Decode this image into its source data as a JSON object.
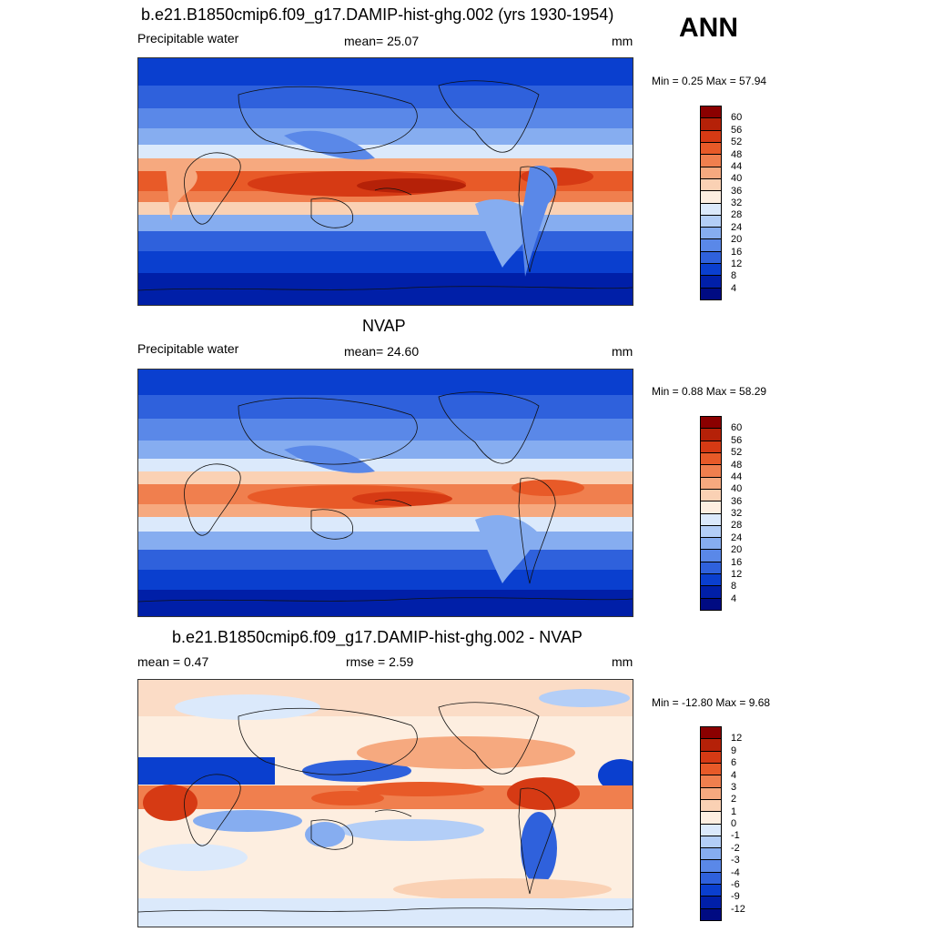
{
  "season": "ANN",
  "panels": [
    {
      "title": "b.e21.B1850cmip6.f09_g17.DAMIP-hist-ghg.002 (yrs 1930-1954)",
      "left_label": "Precipitable water",
      "center_label": "mean=  25.07",
      "units": "mm",
      "minmax": "Min =   0.25 Max =  57.94",
      "colorbar": {
        "colors": [
          "#8b0000",
          "#b52108",
          "#d63a14",
          "#e85a28",
          "#f07f4e",
          "#f6a97f",
          "#fad1b4",
          "#fdeee0",
          "#dbe9fb",
          "#b3cef7",
          "#86adf0",
          "#5a88e8",
          "#2f61dc",
          "#0a3fcf",
          "#001fa8",
          "#000b82"
        ],
        "ticks": [
          "60",
          "56",
          "52",
          "48",
          "44",
          "40",
          "36",
          "32",
          "28",
          "24",
          "20",
          "16",
          "12",
          "8",
          "4"
        ]
      }
    },
    {
      "title": "NVAP",
      "left_label": "Precipitable water",
      "center_label": "mean=  24.60",
      "units": "mm",
      "minmax": "Min =   0.88 Max =  58.29",
      "colorbar": {
        "colors": [
          "#8b0000",
          "#b52108",
          "#d63a14",
          "#e85a28",
          "#f07f4e",
          "#f6a97f",
          "#fad1b4",
          "#fdeee0",
          "#dbe9fb",
          "#b3cef7",
          "#86adf0",
          "#5a88e8",
          "#2f61dc",
          "#0a3fcf",
          "#001fa8",
          "#000b82"
        ],
        "ticks": [
          "60",
          "56",
          "52",
          "48",
          "44",
          "40",
          "36",
          "32",
          "28",
          "24",
          "20",
          "16",
          "12",
          "8",
          "4"
        ]
      }
    },
    {
      "title": "b.e21.B1850cmip6.f09_g17.DAMIP-hist-ghg.002 - NVAP",
      "left_label": "mean =   0.47",
      "center_label": "rmse =   2.59",
      "units": "mm",
      "minmax": "Min = -12.80 Max =   9.68",
      "colorbar": {
        "colors": [
          "#8b0000",
          "#b52108",
          "#d63a14",
          "#e85a28",
          "#f07f4e",
          "#f6a97f",
          "#fad1b4",
          "#fdeee0",
          "#dbe9fb",
          "#b3cef7",
          "#86adf0",
          "#5a88e8",
          "#2f61dc",
          "#0a3fcf",
          "#001fa8",
          "#000b82"
        ],
        "ticks": [
          "12",
          "9",
          "6",
          "4",
          "3",
          "2",
          "1",
          "0",
          "-1",
          "-2",
          "-3",
          "-4",
          "-6",
          "-9",
          "-12"
        ]
      }
    }
  ]
}
